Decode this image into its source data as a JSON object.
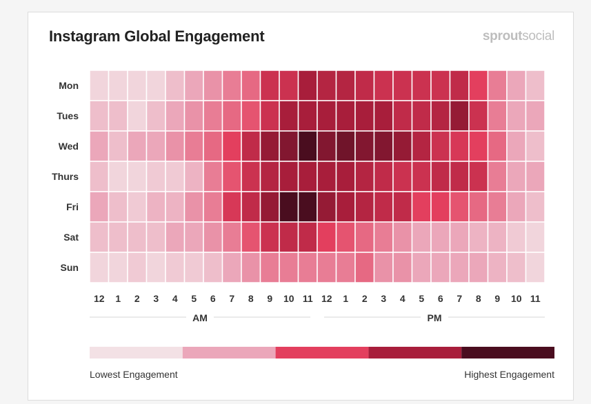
{
  "header": {
    "title": "Instagram Global Engagement",
    "brand_bold": "sprout",
    "brand_regular": "social"
  },
  "chart_data": {
    "type": "heatmap",
    "title": "Instagram Global Engagement",
    "rows": [
      "Mon",
      "Tues",
      "Wed",
      "Thurs",
      "Fri",
      "Sat",
      "Sun"
    ],
    "columns": [
      "12",
      "1",
      "2",
      "3",
      "4",
      "5",
      "6",
      "7",
      "8",
      "9",
      "10",
      "11",
      "12",
      "1",
      "2",
      "3",
      "4",
      "5",
      "6",
      "7",
      "8",
      "9",
      "10",
      "11"
    ],
    "column_groups": [
      {
        "label": "AM",
        "from": 0,
        "to": 11
      },
      {
        "label": "PM",
        "from": 12,
        "to": 23
      }
    ],
    "scale_min": 0,
    "scale_max": 10,
    "values": [
      [
        0.5,
        0.5,
        0.5,
        0.5,
        1.5,
        2.5,
        3,
        3.5,
        4,
        6,
        6,
        7.5,
        7,
        7,
        6.5,
        6,
        6,
        6,
        6,
        6.5,
        5,
        3.5,
        2.5,
        1.5
      ],
      [
        1.5,
        1.5,
        0.5,
        1.5,
        2.5,
        3,
        3.5,
        4,
        4.5,
        6,
        7.5,
        7.5,
        7.5,
        7.5,
        7.5,
        7.5,
        6.5,
        6.5,
        7,
        8,
        6,
        3.5,
        2.5,
        2.5
      ],
      [
        2.5,
        1.5,
        2.5,
        2.5,
        3,
        3.5,
        4,
        5,
        6.5,
        8,
        8.5,
        10,
        8.5,
        9,
        8.5,
        8.5,
        8,
        7,
        6,
        5.5,
        5,
        4,
        2.5,
        1.5
      ],
      [
        1.5,
        0.5,
        0.5,
        1,
        1,
        2,
        3.5,
        4.5,
        6,
        7,
        7.5,
        7.5,
        7.5,
        7.5,
        7,
        6.5,
        6,
        6,
        6.5,
        6.5,
        6,
        3.5,
        2.5,
        2.5
      ],
      [
        2.5,
        1.5,
        1,
        2,
        2,
        3,
        3.5,
        5.5,
        6.5,
        8,
        10,
        10,
        8,
        7.5,
        7,
        6.5,
        6.5,
        5,
        5,
        4.5,
        4,
        3.5,
        2.5,
        1.5
      ],
      [
        1.5,
        1.5,
        1.5,
        1.5,
        2.5,
        2.5,
        3,
        3.5,
        4.5,
        6,
        6.5,
        6.5,
        5,
        4.5,
        4,
        3.5,
        3,
        2.5,
        2.5,
        2.5,
        2,
        2,
        1,
        0.5
      ],
      [
        0.5,
        0.5,
        1,
        0.5,
        1,
        1,
        1.5,
        2.5,
        3,
        3.5,
        3.5,
        3.5,
        3.5,
        3.5,
        4,
        3,
        3,
        2.5,
        2.5,
        2.5,
        2.5,
        2,
        1.5,
        0.5
      ]
    ],
    "colorscale": [
      "#f3e1e5",
      "#eba7ba",
      "#e33f5e",
      "#a81e3b",
      "#4a0d1f"
    ],
    "legend": {
      "colors": [
        "#f3e1e5",
        "#eba7ba",
        "#e33f5e",
        "#a81e3b",
        "#4a0d1f"
      ],
      "low_label": "Lowest Engagement",
      "high_label": "Highest Engagement"
    }
  }
}
